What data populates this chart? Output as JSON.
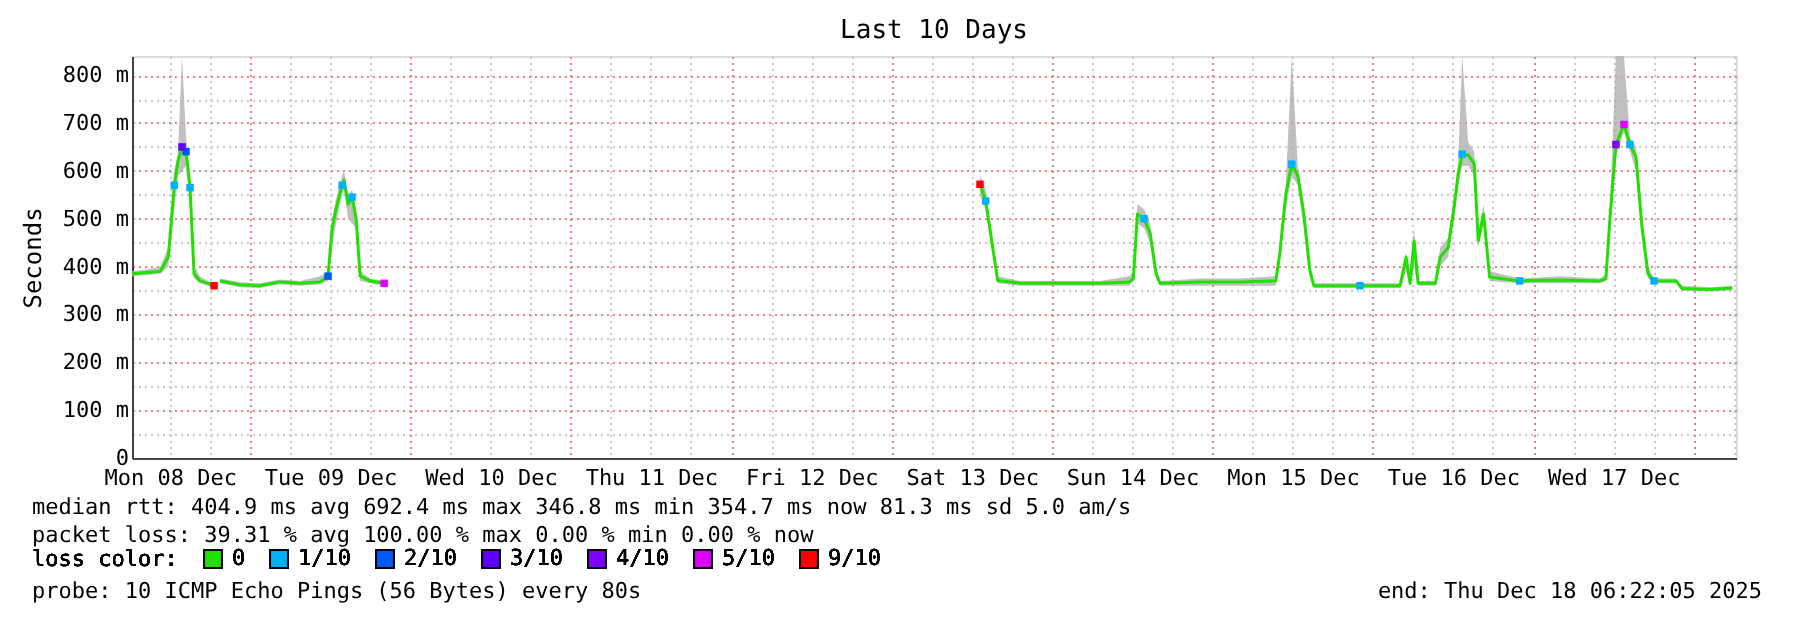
{
  "chart_data": {
    "type": "line",
    "title": "Last 10 Days",
    "ylabel": "Seconds",
    "legend_title": "loss color:",
    "legend": "bottom",
    "grid": true,
    "xlim": [
      "2025-12-08T06:22",
      "2025-12-18T06:22"
    ],
    "ylim": [
      0,
      840
    ],
    "yticks": [
      0,
      {
        "value": 50,
        "label": null
      },
      {
        "value": 100,
        "label": "100 m"
      },
      {
        "value": 150,
        "label": null
      },
      {
        "value": 200,
        "label": "200 m"
      },
      {
        "value": 250,
        "label": null
      },
      {
        "value": 300,
        "label": "300 m"
      },
      {
        "value": 350,
        "label": null
      },
      {
        "value": 400,
        "label": "400 m"
      },
      {
        "value": 450,
        "label": null
      },
      {
        "value": 500,
        "label": "500 m"
      },
      {
        "value": 550,
        "label": null
      },
      {
        "value": 600,
        "label": "600 m"
      },
      {
        "value": 650,
        "label": null
      },
      {
        "value": 700,
        "label": "700 m"
      },
      {
        "value": 750,
        "label": null
      },
      {
        "value": 800,
        "label": "800 m"
      }
    ],
    "xticks": [
      {
        "value": "2025-12-08T12:00",
        "label": "Mon 08 Dec"
      },
      {
        "value": "2025-12-08T18:00",
        "label": null
      },
      {
        "value": "2025-12-09T00:00",
        "label": null
      },
      {
        "value": "2025-12-09T06:00",
        "label": null
      },
      {
        "value": "2025-12-09T12:00",
        "label": "Tue 09 Dec"
      },
      {
        "value": "2025-12-09T18:00",
        "label": null
      },
      {
        "value": "2025-12-10T00:00",
        "label": null
      },
      {
        "value": "2025-12-10T06:00",
        "label": null
      },
      {
        "value": "2025-12-10T12:00",
        "label": "Wed 10 Dec"
      },
      {
        "value": "2025-12-10T18:00",
        "label": null
      },
      {
        "value": "2025-12-11T00:00",
        "label": null
      },
      {
        "value": "2025-12-11T06:00",
        "label": null
      },
      {
        "value": "2025-12-11T12:00",
        "label": "Thu 11 Dec"
      },
      {
        "value": "2025-12-11T18:00",
        "label": null
      },
      {
        "value": "2025-12-12T00:00",
        "label": null
      },
      {
        "value": "2025-12-12T06:00",
        "label": null
      },
      {
        "value": "2025-12-12T12:00",
        "label": "Fri 12 Dec"
      },
      {
        "value": "2025-12-12T18:00",
        "label": null
      },
      {
        "value": "2025-12-13T00:00",
        "label": null
      },
      {
        "value": "2025-12-13T06:00",
        "label": null
      },
      {
        "value": "2025-12-13T12:00",
        "label": "Sat 13 Dec"
      },
      {
        "value": "2025-12-13T18:00",
        "label": null
      },
      {
        "value": "2025-12-14T00:00",
        "label": null
      },
      {
        "value": "2025-12-14T06:00",
        "label": null
      },
      {
        "value": "2025-12-14T12:00",
        "label": "Sun 14 Dec"
      },
      {
        "value": "2025-12-14T18:00",
        "label": null
      },
      {
        "value": "2025-12-15T00:00",
        "label": null
      },
      {
        "value": "2025-12-15T06:00",
        "label": null
      },
      {
        "value": "2025-12-15T12:00",
        "label": "Mon 15 Dec"
      },
      {
        "value": "2025-12-15T18:00",
        "label": null
      },
      {
        "value": "2025-12-16T00:00",
        "label": null
      },
      {
        "value": "2025-12-16T06:00",
        "label": null
      },
      {
        "value": "2025-12-16T12:00",
        "label": "Tue 16 Dec"
      },
      {
        "value": "2025-12-16T18:00",
        "label": null
      },
      {
        "value": "2025-12-17T00:00",
        "label": null
      },
      {
        "value": "2025-12-17T06:00",
        "label": null
      },
      {
        "value": "2025-12-17T12:00",
        "label": "Wed 17 Dec"
      },
      {
        "value": "2025-12-17T18:00",
        "label": null
      },
      {
        "value": "2025-12-18T00:00",
        "label": null
      },
      {
        "value": "2025-12-18T06:00",
        "label": null
      }
    ],
    "annotations": [
      "median rtt:  404.9 ms avg  692.4 ms max  346.8 ms min  354.7 ms now  81.3 ms sd  5.0   am/s",
      "packet loss: 39.31 % avg  100.00 % max  0.00 % min  0.00 % now",
      "probe:       10 ICMP Echo Pings (56 Bytes) every 80s",
      "end: Thu Dec 18 06:22:05 2025"
    ],
    "series": [
      {
        "name": "0",
        "color": "#20e000",
        "x": [
          "2025-12-08T06:22",
          "2025-12-08T09:06",
          "2025-12-08T10:36",
          "2025-12-08T11:48",
          "2025-12-08T12:42",
          "2025-12-08T13:15",
          "2025-12-08T13:51",
          "2025-12-08T14:27",
          "2025-12-08T15:03",
          "2025-12-08T15:39",
          "2025-12-08T16:33",
          "2025-12-08T17:45",
          "2025-12-08T18:39",
          "2025-12-08T19:05",
          "2025-12-08T19:33",
          "2025-12-08T22:33",
          "2025-12-09T01:28",
          "2025-12-09T04:30",
          "2025-12-09T07:30",
          "2025-12-09T10:30",
          "2025-12-09T11:42",
          "2025-12-09T12:18",
          "2025-12-09T12:54",
          "2025-12-09T13:48",
          "2025-12-09T14:06",
          "2025-12-09T14:42",
          "2025-12-09T15:18",
          "2025-12-09T15:54",
          "2025-12-09T16:30",
          "2025-12-09T18:00",
          "2025-12-09T20:06",
          "2025-12-11T12:00",
          "2025-12-13T13:15",
          "2025-12-13T14:06",
          "2025-12-13T15:00",
          "2025-12-13T15:54",
          "2025-12-13T19:12",
          "2025-12-14T01:12",
          "2025-12-14T07:12",
          "2025-12-14T11:36",
          "2025-12-14T12:12",
          "2025-12-14T12:48",
          "2025-12-14T13:48",
          "2025-12-14T14:42",
          "2025-12-14T15:36",
          "2025-12-14T16:12",
          "2025-12-14T22:12",
          "2025-12-15T04:06",
          "2025-12-15T09:30",
          "2025-12-15T10:06",
          "2025-12-15T11:00",
          "2025-12-15T11:54",
          "2025-12-15T12:48",
          "2025-12-15T13:42",
          "2025-12-15T14:36",
          "2025-12-15T15:12",
          "2025-12-15T22:06",
          "2025-12-16T04:06",
          "2025-12-16T05:00",
          "2025-12-16T05:36",
          "2025-12-16T06:12",
          "2025-12-16T06:48",
          "2025-12-16T09:24",
          "2025-12-16T10:06",
          "2025-12-16T11:18",
          "2025-12-16T12:12",
          "2025-12-16T12:48",
          "2025-12-16T13:24",
          "2025-12-16T14:18",
          "2025-12-16T15:12",
          "2025-12-16T15:48",
          "2025-12-16T16:36",
          "2025-12-16T17:30",
          "2025-12-16T22:00",
          "2025-12-17T04:00",
          "2025-12-17T10:00",
          "2025-12-17T10:54",
          "2025-12-17T11:30",
          "2025-12-17T12:24",
          "2025-12-17T13:36",
          "2025-12-17T14:30",
          "2025-12-17T15:24",
          "2025-12-17T16:18",
          "2025-12-17T17:12",
          "2025-12-17T18:06",
          "2025-12-17T21:24",
          "2025-12-17T22:18",
          "2025-12-18T02:30",
          "2025-12-18T05:48"
        ],
        "values": [
          385,
          388,
          390,
          420,
          570,
          620,
          650,
          640,
          565,
          385,
          370,
          365,
          360,
          null,
          370,
          362,
          360,
          368,
          365,
          368,
          380,
          480,
          520,
          570,
          580,
          530,
          545,
          500,
          380,
          370,
          365,
          null,
          572,
          537,
          454,
          371,
          365,
          365,
          365,
          368,
          375,
          510,
          500,
          470,
          385,
          365,
          368,
          368,
          370,
          426,
          551,
          614,
          590,
          510,
          392,
          360,
          360,
          360,
          420,
          365,
          454,
          365,
          365,
          420,
          440,
          525,
          593,
          635,
          633,
          615,
          454,
          510,
          378,
          370,
          372,
          370,
          375,
          500,
          655,
          697,
          655,
          629,
          483,
          385,
          370,
          370,
          354,
          352,
          355
        ],
        "lower": [
          380,
          383,
          385,
          400,
          520,
          590,
          600,
          610,
          540,
          375,
          365,
          360,
          355,
          null,
          365,
          357,
          355,
          363,
          360,
          363,
          370,
          440,
          490,
          550,
          560,
          500,
          490,
          480,
          370,
          365,
          360,
          null,
          550,
          520,
          440,
          365,
          360,
          360,
          360,
          360,
          370,
          490,
          480,
          450,
          375,
          360,
          360,
          360,
          360,
          410,
          520,
          590,
          570,
          480,
          380,
          355,
          355,
          355,
          390,
          360,
          400,
          360,
          360,
          400,
          420,
          500,
          570,
          610,
          610,
          590,
          440,
          490,
          370,
          365,
          365,
          365,
          370,
          470,
          630,
          680,
          640,
          600,
          460,
          375,
          365,
          365,
          350,
          348,
          350
        ],
        "upper": [
          390,
          395,
          400,
          440,
          600,
          640,
          840,
          670,
          590,
          400,
          380,
          370,
          365,
          null,
          375,
          367,
          365,
          373,
          370,
          380,
          390,
          500,
          540,
          590,
          600,
          550,
          560,
          520,
          390,
          375,
          370,
          null,
          590,
          560,
          470,
          380,
          370,
          370,
          370,
          380,
          390,
          530,
          520,
          490,
          400,
          370,
          375,
          375,
          380,
          440,
          570,
          840,
          610,
          530,
          410,
          365,
          365,
          365,
          430,
          370,
          480,
          370,
          370,
          440,
          460,
          550,
          620,
          840,
          660,
          640,
          470,
          530,
          390,
          375,
          380,
          375,
          385,
          520,
          840,
          840,
          670,
          650,
          500,
          400,
          375,
          375,
          360,
          357,
          360
        ]
      },
      {
        "name": "1/10",
        "color": "#00b0ff",
        "type": "scatter",
        "x": [
          "2025-12-08T12:42",
          "2025-12-08T15:03",
          "2025-12-09T13:48",
          "2025-12-09T15:18",
          "2025-12-13T14:06",
          "2025-12-14T13:48",
          "2025-12-15T11:54",
          "2025-12-15T22:06",
          "2025-12-16T13:24",
          "2025-12-16T22:00",
          "2025-12-17T14:30",
          "2025-12-17T18:06"
        ],
        "values": [
          570,
          565,
          570,
          545,
          537,
          500,
          614,
          360,
          635,
          370,
          655,
          370
        ]
      },
      {
        "name": "2/10",
        "color": "#0059ff",
        "type": "scatter",
        "x": [
          "2025-12-08T14:27",
          "2025-12-09T11:42"
        ],
        "values": [
          640,
          380
        ]
      },
      {
        "name": "3/10",
        "color": "#5e00ff",
        "type": "scatter",
        "x": [
          "2025-12-08T13:51"
        ],
        "values": [
          650
        ]
      },
      {
        "name": "4/10",
        "color": "#7e00ff",
        "type": "scatter",
        "x": [
          "2025-12-17T12:24"
        ],
        "values": [
          655
        ]
      },
      {
        "name": "5/10",
        "color": "#dd00ff",
        "type": "scatter",
        "x": [
          "2025-12-09T20:06",
          "2025-12-17T13:36"
        ],
        "values": [
          365,
          697
        ]
      },
      {
        "name": "9/10",
        "color": "#ff0000",
        "type": "scatter",
        "x": [
          "2025-12-08T18:39",
          "2025-12-13T13:15"
        ],
        "values": [
          360,
          572
        ]
      }
    ]
  }
}
